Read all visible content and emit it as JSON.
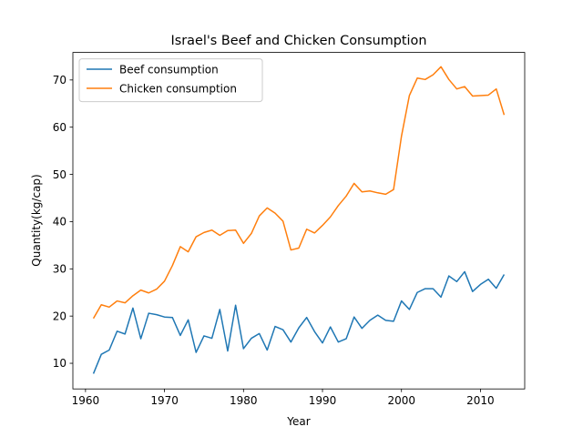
{
  "chart_data": {
    "type": "line",
    "title": "Israel's Beef and Chicken Consumption",
    "xlabel": "Year",
    "ylabel": "Quantity(kg/cap)",
    "xlim": [
      1958.4,
      2015.6
    ],
    "ylim": [
      4.57,
      75.83
    ],
    "xticks": [
      1960,
      1970,
      1980,
      1990,
      2000,
      2010
    ],
    "yticks": [
      10,
      20,
      30,
      40,
      50,
      60,
      70
    ],
    "grid": false,
    "legend_position": "upper-left",
    "x": [
      1961,
      1962,
      1963,
      1964,
      1965,
      1966,
      1967,
      1968,
      1969,
      1970,
      1971,
      1972,
      1973,
      1974,
      1975,
      1976,
      1977,
      1978,
      1979,
      1980,
      1981,
      1982,
      1983,
      1984,
      1985,
      1986,
      1987,
      1988,
      1989,
      1990,
      1991,
      1992,
      1993,
      1994,
      1995,
      1996,
      1997,
      1998,
      1999,
      2000,
      2001,
      2002,
      2003,
      2004,
      2005,
      2006,
      2007,
      2008,
      2009,
      2010,
      2011,
      2012,
      2013
    ],
    "series": [
      {
        "name": "Beef consumption",
        "color": "#1f77b4",
        "values": [
          7.8,
          11.9,
          12.8,
          16.8,
          16.2,
          21.7,
          15.2,
          20.6,
          20.3,
          19.8,
          19.7,
          15.9,
          19.2,
          12.3,
          15.8,
          15.3,
          21.4,
          12.6,
          22.3,
          13.1,
          15.3,
          16.3,
          12.8,
          17.8,
          17.1,
          14.5,
          17.5,
          19.7,
          16.7,
          14.3,
          17.7,
          14.5,
          15.2,
          19.8,
          17.4,
          19.1,
          20.2,
          19.1,
          18.9,
          23.2,
          21.4,
          25.0,
          25.8,
          25.8,
          24.0,
          28.5,
          27.3,
          29.4,
          25.2,
          26.7,
          27.8,
          25.9,
          28.8
        ]
      },
      {
        "name": "Chicken consumption",
        "color": "#ff7f0e",
        "values": [
          19.5,
          22.4,
          21.9,
          23.2,
          22.8,
          24.3,
          25.5,
          24.9,
          25.7,
          27.4,
          30.7,
          34.7,
          33.6,
          36.8,
          37.7,
          38.2,
          37.1,
          38.1,
          38.2,
          35.4,
          37.5,
          41.2,
          42.9,
          41.8,
          40.1,
          34.0,
          34.4,
          38.4,
          37.6,
          39.2,
          41.0,
          43.4,
          45.4,
          48.1,
          46.3,
          46.5,
          46.1,
          45.8,
          46.8,
          58.1,
          66.7,
          70.4,
          70.1,
          71.1,
          72.8,
          70.1,
          68.1,
          68.6,
          66.6,
          66.7,
          66.8,
          68.1,
          62.6
        ]
      }
    ]
  }
}
